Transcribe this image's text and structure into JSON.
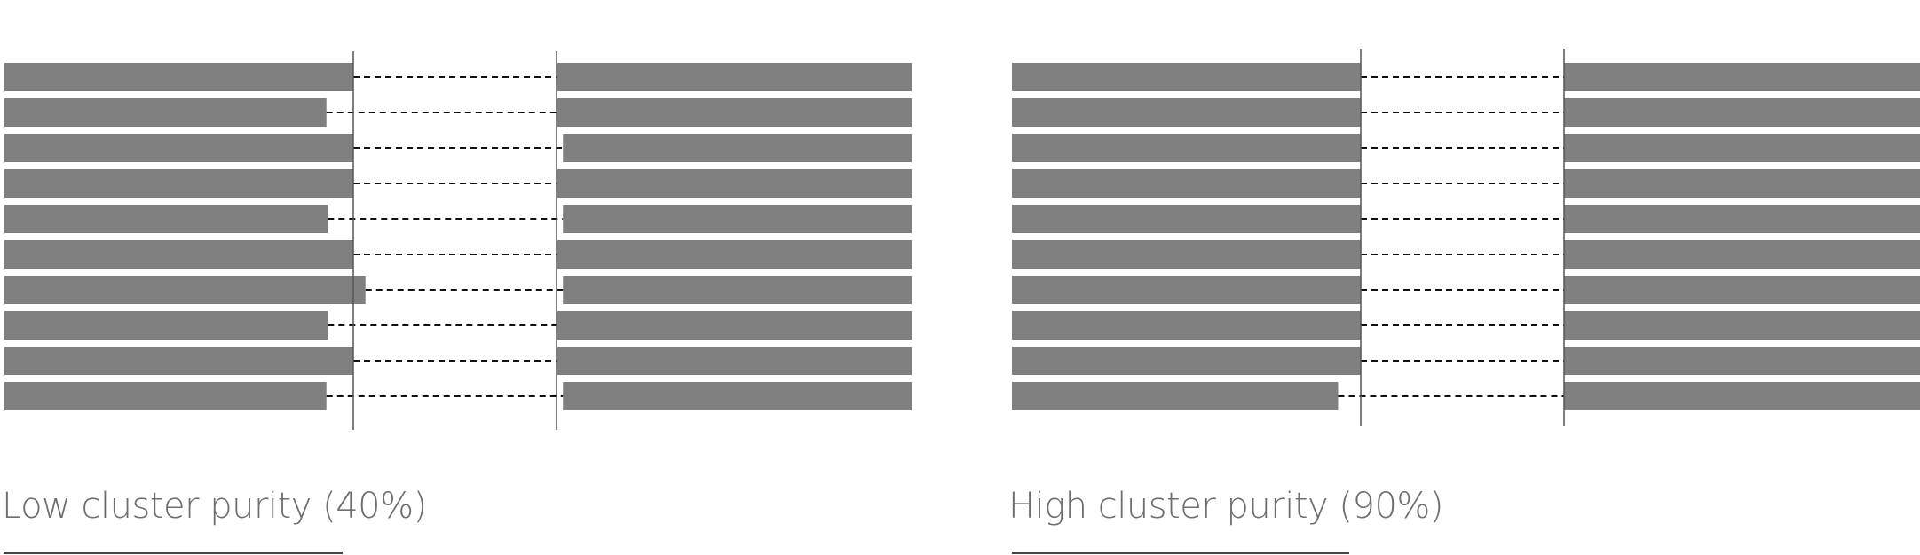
{
  "colors": {
    "bar": "#808080",
    "divider": "#555555",
    "connector": "#111111",
    "caption": "#6e6e6e"
  },
  "panels": [
    {
      "caption": "Low cluster purity (40%)",
      "purity_percent": 40,
      "rows": [
        {
          "left": 1.0,
          "right": 1.0
        },
        {
          "left": 0.923,
          "right": 1.0
        },
        {
          "left": 1.0,
          "right": 0.982
        },
        {
          "left": 1.0,
          "right": 1.0
        },
        {
          "left": 0.927,
          "right": 0.982
        },
        {
          "left": 1.0,
          "right": 1.0
        },
        {
          "left": 1.035,
          "right": 0.982
        },
        {
          "left": 0.927,
          "right": 1.0
        },
        {
          "left": 1.0,
          "right": 1.0
        },
        {
          "left": 0.923,
          "right": 0.982
        }
      ]
    },
    {
      "caption": "High cluster purity (90%)",
      "purity_percent": 90,
      "rows": [
        {
          "left": 1.0,
          "right": 1.0
        },
        {
          "left": 1.0,
          "right": 1.0
        },
        {
          "left": 1.0,
          "right": 1.0
        },
        {
          "left": 1.0,
          "right": 1.0
        },
        {
          "left": 1.0,
          "right": 1.0
        },
        {
          "left": 1.0,
          "right": 1.0
        },
        {
          "left": 1.0,
          "right": 1.0
        },
        {
          "left": 1.0,
          "right": 1.0
        },
        {
          "left": 1.0,
          "right": 1.0
        },
        {
          "left": 0.935,
          "right": 1.0
        }
      ]
    }
  ]
}
